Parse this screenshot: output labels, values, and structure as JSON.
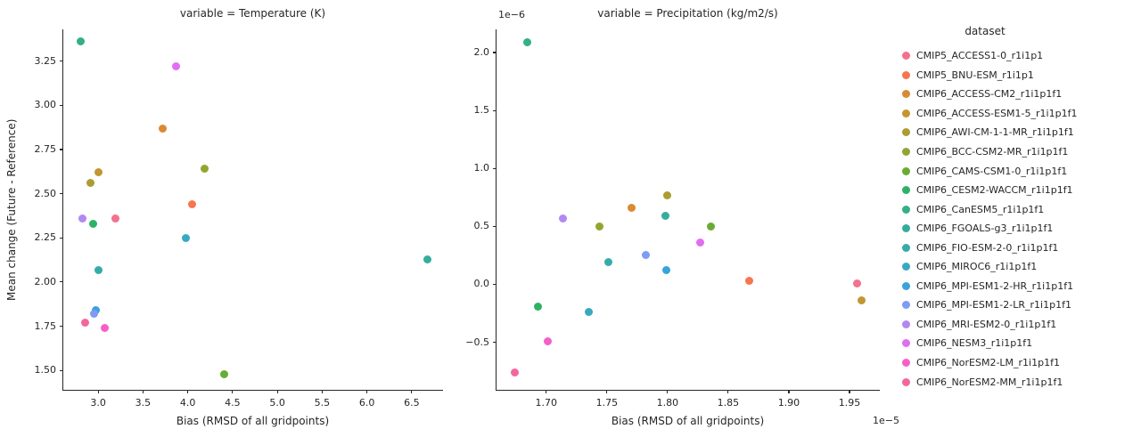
{
  "figure": {
    "ylabel": "Mean change (Future - Reference)"
  },
  "chart_data": {
    "type": "scatter",
    "legend_title": "dataset",
    "legend_position": "right",
    "grid": false,
    "marker_size_px": 9,
    "datasets": [
      {
        "label": "CMIP5_ACCESS1-0_r1i1p1",
        "color": "#f4718b"
      },
      {
        "label": "CMIP5_BNU-ESM_r1i1p1",
        "color": "#f7764f"
      },
      {
        "label": "CMIP6_ACCESS-CM2_r1i1p1f1",
        "color": "#da8a32"
      },
      {
        "label": "CMIP6_ACCESS-ESM1-5_r1i1p1f1",
        "color": "#c29632"
      },
      {
        "label": "CMIP6_AWI-CM-1-1-MR_r1i1p1f1",
        "color": "#ab9d32"
      },
      {
        "label": "CMIP6_BCC-CSM2-MR_r1i1p1f1",
        "color": "#94a431"
      },
      {
        "label": "CMIP6_CAMS-CSM1-0_r1i1p1f1",
        "color": "#69ac33"
      },
      {
        "label": "CMIP6_CESM2-WACCM_r1i1p1f1",
        "color": "#2fb165"
      },
      {
        "label": "CMIP6_CanESM5_r1i1p1f1",
        "color": "#33af89"
      },
      {
        "label": "CMIP6_FGOALS-g3_r1i1p1f1",
        "color": "#35ad9b"
      },
      {
        "label": "CMIP6_FIO-ESM-2-0_r1i1p1f1",
        "color": "#36acaa"
      },
      {
        "label": "CMIP6_MIROC6_r1i1p1f1",
        "color": "#38a9c0"
      },
      {
        "label": "CMIP6_MPI-ESM1-2-HR_r1i1p1f1",
        "color": "#3aa2dc"
      },
      {
        "label": "CMIP6_MPI-ESM1-2-LR_r1i1p1f1",
        "color": "#7e9bf6"
      },
      {
        "label": "CMIP6_MRI-ESM2-0_r1i1p1f1",
        "color": "#b288f2"
      },
      {
        "label": "CMIP6_NESM3_r1i1p1f1",
        "color": "#e16ef2"
      },
      {
        "label": "CMIP6_NorESM2-LM_r1i1p1f1",
        "color": "#f75fc8"
      },
      {
        "label": "CMIP6_NorESM2-MM_r1i1p1f1",
        "color": "#f3679d"
      }
    ],
    "panels": [
      {
        "title": "variable = Temperature (K)",
        "xlabel": "Bias (RMSD of all gridpoints)",
        "ylabel": "Mean change (Future - Reference)",
        "xlim": [
          2.61,
          6.85
        ],
        "ylim": [
          1.39,
          3.43
        ],
        "xticks": [
          3.0,
          3.5,
          4.0,
          4.5,
          5.0,
          5.5,
          6.0,
          6.5
        ],
        "xtick_labels": [
          "3.0",
          "3.5",
          "4.0",
          "4.5",
          "5.0",
          "5.5",
          "6.0",
          "6.5"
        ],
        "yticks": [
          1.5,
          1.75,
          2.0,
          2.25,
          2.5,
          2.75,
          3.0,
          3.25
        ],
        "ytick_labels": [
          "1.50",
          "1.75",
          "2.00",
          "2.25",
          "2.50",
          "2.75",
          "3.00",
          "3.25"
        ],
        "points": [
          {
            "dataset": "CMIP5_ACCESS1-0_r1i1p1",
            "x": 3.19,
            "y": 2.36
          },
          {
            "dataset": "CMIP5_BNU-ESM_r1i1p1",
            "x": 4.05,
            "y": 2.44
          },
          {
            "dataset": "CMIP6_ACCESS-CM2_r1i1p1f1",
            "x": 3.72,
            "y": 2.87
          },
          {
            "dataset": "CMIP6_ACCESS-ESM1-5_r1i1p1f1",
            "x": 3.0,
            "y": 2.62
          },
          {
            "dataset": "CMIP6_AWI-CM-1-1-MR_r1i1p1f1",
            "x": 2.91,
            "y": 2.56
          },
          {
            "dataset": "CMIP6_BCC-CSM2-MR_r1i1p1f1",
            "x": 4.19,
            "y": 2.64
          },
          {
            "dataset": "CMIP6_CAMS-CSM1-0_r1i1p1f1",
            "x": 4.41,
            "y": 1.48
          },
          {
            "dataset": "CMIP6_CESM2-WACCM_r1i1p1f1",
            "x": 2.94,
            "y": 2.33
          },
          {
            "dataset": "CMIP6_CanESM5_r1i1p1f1",
            "x": 2.8,
            "y": 3.36
          },
          {
            "dataset": "CMIP6_FGOALS-g3_r1i1p1f1",
            "x": 6.68,
            "y": 2.13
          },
          {
            "dataset": "CMIP6_FIO-ESM-2-0_r1i1p1f1",
            "x": 3.0,
            "y": 2.07
          },
          {
            "dataset": "CMIP6_MIROC6_r1i1p1f1",
            "x": 3.98,
            "y": 2.25
          },
          {
            "dataset": "CMIP6_MPI-ESM1-2-HR_r1i1p1f1",
            "x": 2.97,
            "y": 1.84
          },
          {
            "dataset": "CMIP6_MPI-ESM1-2-LR_r1i1p1f1",
            "x": 2.95,
            "y": 1.82
          },
          {
            "dataset": "CMIP6_MRI-ESM2-0_r1i1p1f1",
            "x": 2.82,
            "y": 2.36
          },
          {
            "dataset": "CMIP6_NESM3_r1i1p1f1",
            "x": 3.87,
            "y": 3.22
          },
          {
            "dataset": "CMIP6_NorESM2-LM_r1i1p1f1",
            "x": 3.07,
            "y": 1.74
          },
          {
            "dataset": "CMIP6_NorESM2-MM_r1i1p1f1",
            "x": 2.85,
            "y": 1.77
          }
        ]
      },
      {
        "title": "variable = Precipitation (kg/m2/s)",
        "xlabel": "Bias (RMSD of all gridpoints)",
        "x_unit_multiplier": "1e−5",
        "y_unit_multiplier": "1e−6",
        "x_offset_text": "1e−5",
        "y_offset_text": "1e−6",
        "xlim": [
          1.659,
          1.975
        ],
        "ylim": [
          -0.91,
          2.2
        ],
        "xticks": [
          1.7,
          1.75,
          1.8,
          1.85,
          1.9,
          1.95
        ],
        "xtick_labels": [
          "1.70",
          "1.75",
          "1.80",
          "1.85",
          "1.90",
          "1.95"
        ],
        "yticks": [
          -0.5,
          0.0,
          0.5,
          1.0,
          1.5,
          2.0
        ],
        "ytick_labels": [
          "−0.5",
          "0.0",
          "0.5",
          "1.0",
          "1.5",
          "2.0"
        ],
        "points": [
          {
            "dataset": "CMIP5_ACCESS1-0_r1i1p1",
            "x": 1.956,
            "y": 0.01
          },
          {
            "dataset": "CMIP5_BNU-ESM_r1i1p1",
            "x": 1.867,
            "y": 0.03
          },
          {
            "dataset": "CMIP6_ACCESS-CM2_r1i1p1f1",
            "x": 1.77,
            "y": 0.66
          },
          {
            "dataset": "CMIP6_ACCESS-ESM1-5_r1i1p1f1",
            "x": 1.96,
            "y": -0.14
          },
          {
            "dataset": "CMIP6_AWI-CM-1-1-MR_r1i1p1f1",
            "x": 1.8,
            "y": 0.77
          },
          {
            "dataset": "CMIP6_BCC-CSM2-MR_r1i1p1f1",
            "x": 1.744,
            "y": 0.5
          },
          {
            "dataset": "CMIP6_CAMS-CSM1-0_r1i1p1f1",
            "x": 1.836,
            "y": 0.5
          },
          {
            "dataset": "CMIP6_CESM2-WACCM_r1i1p1f1",
            "x": 1.693,
            "y": -0.19
          },
          {
            "dataset": "CMIP6_CanESM5_r1i1p1f1",
            "x": 1.684,
            "y": 2.09
          },
          {
            "dataset": "CMIP6_FGOALS-g3_r1i1p1f1",
            "x": 1.798,
            "y": 0.59
          },
          {
            "dataset": "CMIP6_FIO-ESM-2-0_r1i1p1f1",
            "x": 1.751,
            "y": 0.19
          },
          {
            "dataset": "CMIP6_MIROC6_r1i1p1f1",
            "x": 1.735,
            "y": -0.24
          },
          {
            "dataset": "CMIP6_MPI-ESM1-2-HR_r1i1p1f1",
            "x": 1.799,
            "y": 0.12
          },
          {
            "dataset": "CMIP6_MPI-ESM1-2-LR_r1i1p1f1",
            "x": 1.782,
            "y": 0.25
          },
          {
            "dataset": "CMIP6_MRI-ESM2-0_r1i1p1f1",
            "x": 1.714,
            "y": 0.57
          },
          {
            "dataset": "CMIP6_NESM3_r1i1p1f1",
            "x": 1.827,
            "y": 0.36
          },
          {
            "dataset": "CMIP6_NorESM2-LM_r1i1p1f1",
            "x": 1.701,
            "y": -0.49
          },
          {
            "dataset": "CMIP6_NorESM2-MM_r1i1p1f1",
            "x": 1.674,
            "y": -0.76
          }
        ]
      }
    ]
  }
}
